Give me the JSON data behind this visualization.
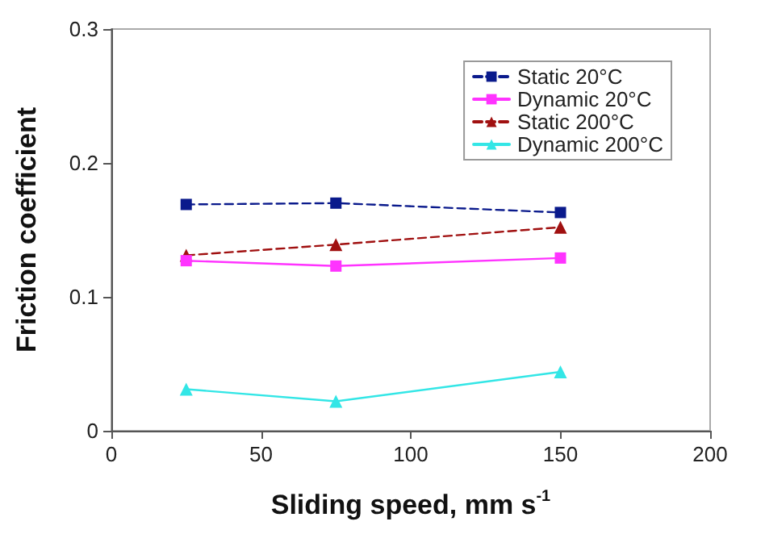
{
  "chart_data": {
    "type": "line",
    "xlabel": "Sliding speed, mm s$^{-1}$",
    "ylabel": "Friction coefficient",
    "x": [
      25,
      75,
      150
    ],
    "xlim": [
      0,
      200
    ],
    "xticks": [
      0,
      50,
      100,
      150,
      200
    ],
    "ylim": [
      0,
      0.3
    ],
    "yticks": [
      0,
      0.1,
      0.2,
      0.3
    ],
    "grid": false,
    "legend": "top right",
    "series": [
      {
        "name": "Static 20°C",
        "color": "#0a1a8c",
        "marker": "square",
        "line_style": "dashed",
        "values": [
          0.169,
          0.17,
          0.163
        ]
      },
      {
        "name": "Dynamic 20°C",
        "color": "#ff33ff",
        "marker": "square",
        "line_style": "solid",
        "values": [
          0.127,
          0.123,
          0.129
        ]
      },
      {
        "name": "Static 200°C",
        "color": "#a01010",
        "marker": "triangle",
        "line_style": "dashed",
        "values": [
          0.131,
          0.139,
          0.152
        ]
      },
      {
        "name": "Dynamic 200°C",
        "color": "#33e6e6",
        "marker": "triangle",
        "line_style": "solid",
        "values": [
          0.031,
          0.022,
          0.044
        ]
      }
    ]
  }
}
